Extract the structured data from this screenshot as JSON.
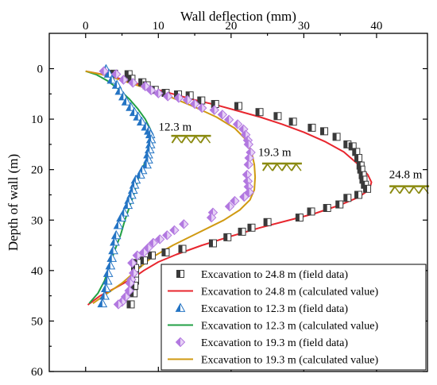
{
  "chart_data": {
    "type": "scatter",
    "title": "",
    "xlabel": "Wall deflection (mm)",
    "ylabel": "Depth of wall (m)",
    "xlim": [
      -5,
      47
    ],
    "ylim": [
      60,
      -7
    ],
    "x_ticks": [
      0,
      10,
      20,
      30,
      40
    ],
    "y_ticks": [
      0,
      10,
      20,
      30,
      40,
      50,
      60
    ],
    "x_axis_position": "top",
    "grid": false,
    "legend_position": "bottom-right",
    "annotations": [
      {
        "text": "12.3 m",
        "x": 12.3,
        "y": 12.3,
        "ground_x": 14.5,
        "ground_y": 13.3
      },
      {
        "text": "19.3 m",
        "x": 26.0,
        "y": 17.3,
        "ground_x": 27.0,
        "ground_y": 18.8
      },
      {
        "text": "24.8 m",
        "x": 44.0,
        "y": 21.7,
        "ground_x": 44.5,
        "ground_y": 23.3
      }
    ],
    "series": [
      {
        "name": "Excavation to 24.8 m (field data)",
        "kind": "points",
        "marker": "square-half",
        "color": "#3a3a3a",
        "points": [
          [
            3.9,
            1.0
          ],
          [
            5.9,
            1.1
          ],
          [
            6.3,
            2.0
          ],
          [
            7.8,
            2.7
          ],
          [
            8.4,
            3.3
          ],
          [
            9.5,
            4.2
          ],
          [
            11.0,
            4.8
          ],
          [
            12.7,
            5.1
          ],
          [
            14.3,
            5.3
          ],
          [
            15.9,
            6.3
          ],
          [
            17.8,
            7.0
          ],
          [
            21.0,
            7.4
          ],
          [
            23.9,
            8.6
          ],
          [
            26.4,
            9.4
          ],
          [
            28.5,
            10.5
          ],
          [
            31.1,
            11.7
          ],
          [
            32.8,
            12.4
          ],
          [
            34.5,
            13.5
          ],
          [
            36.0,
            15.0
          ],
          [
            36.7,
            15.4
          ],
          [
            37.2,
            16.5
          ],
          [
            37.5,
            17.7
          ],
          [
            37.8,
            19.2
          ],
          [
            37.9,
            20.0
          ],
          [
            38.1,
            21.1
          ],
          [
            38.2,
            22.0
          ],
          [
            38.4,
            23.0
          ],
          [
            38.7,
            23.8
          ],
          [
            37.5,
            25.0
          ],
          [
            36.0,
            25.6
          ],
          [
            34.9,
            26.9
          ],
          [
            33.2,
            27.6
          ],
          [
            31.0,
            28.3
          ],
          [
            29.4,
            29.5
          ],
          [
            25.0,
            30.4
          ],
          [
            22.8,
            31.5
          ],
          [
            21.5,
            32.3
          ],
          [
            19.5,
            33.4
          ],
          [
            17.5,
            34.6
          ],
          [
            13.3,
            35.7
          ],
          [
            11.0,
            36.4
          ],
          [
            9.1,
            37.0
          ],
          [
            8.0,
            38.0
          ],
          [
            7.1,
            38.5
          ],
          [
            6.8,
            39.5
          ],
          [
            6.8,
            41.0
          ],
          [
            6.8,
            42.0
          ],
          [
            6.7,
            43.0
          ],
          [
            6.6,
            44.5
          ],
          [
            6.2,
            46.7
          ]
        ]
      },
      {
        "name": "Excavation to 24.8 m (calculated value)",
        "kind": "line",
        "color": "#e8262e",
        "points": [
          [
            0,
            0.5
          ],
          [
            3,
            1.3
          ],
          [
            6,
            2.5
          ],
          [
            9,
            3.8
          ],
          [
            12,
            5.0
          ],
          [
            15,
            6.2
          ],
          [
            18,
            7.2
          ],
          [
            21,
            8.4
          ],
          [
            24,
            9.6
          ],
          [
            27,
            11.0
          ],
          [
            30,
            12.6
          ],
          [
            33,
            14.5
          ],
          [
            35.5,
            16.5
          ],
          [
            37.5,
            19.0
          ],
          [
            38.8,
            21.0
          ],
          [
            39.3,
            22.5
          ],
          [
            39.0,
            24.0
          ],
          [
            37.5,
            25.5
          ],
          [
            35.0,
            27.0
          ],
          [
            31.5,
            28.7
          ],
          [
            27.5,
            30.2
          ],
          [
            24.0,
            31.5
          ],
          [
            20.0,
            33.2
          ],
          [
            16.0,
            35.0
          ],
          [
            12.5,
            36.8
          ],
          [
            10.0,
            38.3
          ],
          [
            8.0,
            40.0
          ],
          [
            6.5,
            41.5
          ],
          [
            4.0,
            43.5
          ],
          [
            2.0,
            45.0
          ],
          [
            0.3,
            46.8
          ]
        ]
      },
      {
        "name": "Excavation to 12.3 m (field data)",
        "kind": "points",
        "marker": "triangle-half",
        "color": "#2474c4",
        "points": [
          [
            2.8,
            0.1
          ],
          [
            3.2,
            1.0
          ],
          [
            3.6,
            2.2
          ],
          [
            4.3,
            3.2
          ],
          [
            4.7,
            4.4
          ],
          [
            5.2,
            5.5
          ],
          [
            5.6,
            6.5
          ],
          [
            6.2,
            7.6
          ],
          [
            6.7,
            8.6
          ],
          [
            7.2,
            9.5
          ],
          [
            7.7,
            10.5
          ],
          [
            8.3,
            11.5
          ],
          [
            8.7,
            12.3
          ],
          [
            8.9,
            13.0
          ],
          [
            9.0,
            14.0
          ],
          [
            8.9,
            15.0
          ],
          [
            8.8,
            16.0
          ],
          [
            8.6,
            17.0
          ],
          [
            8.6,
            18.0
          ],
          [
            8.4,
            19.0
          ],
          [
            7.8,
            20.1
          ],
          [
            7.5,
            21.0
          ],
          [
            6.9,
            22.0
          ],
          [
            6.7,
            23.0
          ],
          [
            6.5,
            24.0
          ],
          [
            6.3,
            25.0
          ],
          [
            6.0,
            26.0
          ],
          [
            5.8,
            27.0
          ],
          [
            5.3,
            28.5
          ],
          [
            4.9,
            29.5
          ],
          [
            4.5,
            31.0
          ],
          [
            4.2,
            33.0
          ],
          [
            4.0,
            34.3
          ],
          [
            3.8,
            36.0
          ],
          [
            3.6,
            37.5
          ],
          [
            3.4,
            39.0
          ],
          [
            3.1,
            40.5
          ],
          [
            3.0,
            42.0
          ],
          [
            2.8,
            43.5
          ],
          [
            2.6,
            45.0
          ],
          [
            2.3,
            46.5
          ]
        ]
      },
      {
        "name": "Excavation to 12.3 m (calculated value)",
        "kind": "line",
        "color": "#22a045",
        "points": [
          [
            0,
            0.5
          ],
          [
            1.5,
            1.2
          ],
          [
            3.0,
            2.4
          ],
          [
            4.5,
            4.0
          ],
          [
            6.0,
            6.0
          ],
          [
            7.2,
            8.0
          ],
          [
            8.2,
            10.0
          ],
          [
            8.9,
            12.0
          ],
          [
            9.2,
            14.0
          ],
          [
            9.0,
            16.0
          ],
          [
            8.4,
            18.0
          ],
          [
            7.5,
            20.5
          ],
          [
            7.0,
            23.0
          ],
          [
            6.6,
            25.0
          ],
          [
            6.0,
            27.5
          ],
          [
            5.4,
            30.0
          ],
          [
            4.8,
            33.0
          ],
          [
            4.0,
            36.0
          ],
          [
            3.3,
            39.0
          ],
          [
            2.6,
            42.0
          ],
          [
            1.7,
            44.5
          ],
          [
            0.5,
            46.5
          ]
        ]
      },
      {
        "name": "Excavation to 19.3 m (field data)",
        "kind": "points",
        "marker": "diamond-half",
        "color": "#b278e0",
        "points": [
          [
            2.5,
            0.5
          ],
          [
            4.2,
            1.1
          ],
          [
            5.2,
            2.2
          ],
          [
            6.5,
            2.8
          ],
          [
            8.2,
            3.5
          ],
          [
            9.0,
            4.3
          ],
          [
            10.0,
            4.9
          ],
          [
            11.3,
            5.5
          ],
          [
            12.8,
            5.8
          ],
          [
            14.0,
            6.2
          ],
          [
            15.0,
            7.0
          ],
          [
            16.0,
            7.8
          ],
          [
            17.7,
            8.2
          ],
          [
            18.8,
            9.1
          ],
          [
            19.7,
            10.1
          ],
          [
            20.9,
            11.0
          ],
          [
            21.7,
            12.0
          ],
          [
            22.0,
            13.1
          ],
          [
            22.3,
            14.2
          ],
          [
            22.4,
            15.0
          ],
          [
            22.7,
            16.6
          ],
          [
            22.5,
            17.7
          ],
          [
            22.4,
            19.0
          ],
          [
            22.2,
            21.0
          ],
          [
            22.3,
            22.3
          ],
          [
            22.4,
            23.4
          ],
          [
            22.5,
            24.5
          ],
          [
            21.8,
            25.4
          ],
          [
            20.5,
            26.2
          ],
          [
            19.8,
            27.3
          ],
          [
            17.5,
            28.5
          ],
          [
            17.3,
            29.5
          ],
          [
            13.5,
            30.8
          ],
          [
            12.2,
            32.0
          ],
          [
            11.2,
            33.0
          ],
          [
            10.2,
            33.8
          ],
          [
            9.3,
            34.5
          ],
          [
            8.6,
            35.5
          ],
          [
            8.0,
            36.4
          ],
          [
            7.1,
            37.0
          ],
          [
            6.4,
            38.5
          ],
          [
            6.6,
            40.5
          ],
          [
            6.3,
            41.8
          ],
          [
            6.1,
            42.5
          ],
          [
            6.0,
            44.0
          ],
          [
            5.5,
            45.2
          ],
          [
            5.0,
            46.2
          ],
          [
            4.5,
            46.7
          ]
        ]
      },
      {
        "name": "Excavation to 19.3 m (calculated value)",
        "kind": "line",
        "color": "#d09a12",
        "points": [
          [
            0,
            0.5
          ],
          [
            3,
            1.4
          ],
          [
            6,
            2.8
          ],
          [
            9,
            4.2
          ],
          [
            12,
            5.8
          ],
          [
            15,
            7.6
          ],
          [
            18,
            9.6
          ],
          [
            20.5,
            11.8
          ],
          [
            22.0,
            14.0
          ],
          [
            22.8,
            16.5
          ],
          [
            23.2,
            19.0
          ],
          [
            23.3,
            21.5
          ],
          [
            23.2,
            24.0
          ],
          [
            22.6,
            26.0
          ],
          [
            21.2,
            28.0
          ],
          [
            19.0,
            30.0
          ],
          [
            15.5,
            32.5
          ],
          [
            12.0,
            35.0
          ],
          [
            9.0,
            37.5
          ],
          [
            7.0,
            40.0
          ],
          [
            5.0,
            42.5
          ],
          [
            3.0,
            44.5
          ],
          [
            1.0,
            46.5
          ]
        ]
      }
    ]
  }
}
